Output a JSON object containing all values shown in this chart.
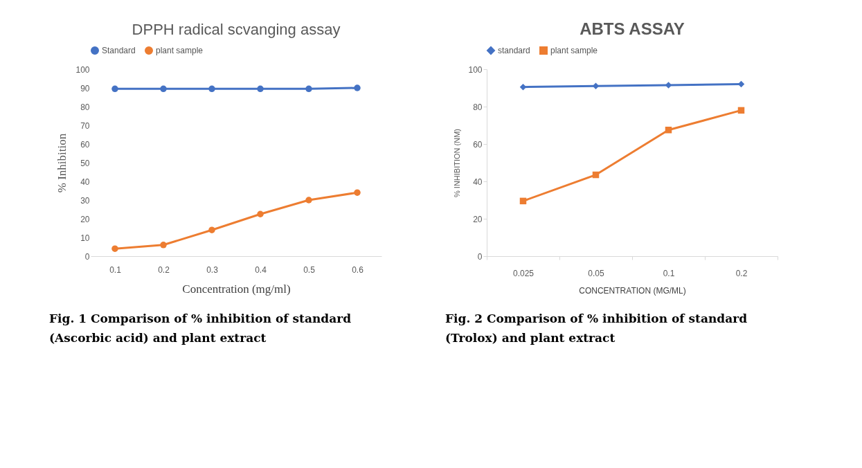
{
  "chart_data": [
    {
      "type": "line",
      "title": "DPPH radical scvanging assay",
      "xlabel": "Concentration  (mg/ml)",
      "ylabel": "% Inhibition",
      "categories": [
        "0.1",
        "0.2",
        "0.3",
        "0.4",
        "0.5",
        "0.6"
      ],
      "series": [
        {
          "name": "Standard",
          "color": "#4472c4",
          "values": [
            89.5,
            89.5,
            89.5,
            89.5,
            89.5,
            90
          ]
        },
        {
          "name": "plant sample",
          "color": "#ed7d31",
          "values": [
            4,
            6,
            14,
            22.5,
            30,
            34
          ]
        }
      ],
      "ylim": [
        0,
        100
      ],
      "yticks": [
        0,
        10,
        20,
        30,
        40,
        50,
        60,
        70,
        80,
        90,
        100
      ],
      "legend": "top",
      "marker": "circle",
      "grid": false,
      "annotations": [
        "Fig. 1 Comparison of % inhibition of standard (Ascorbic acid) and plant extract"
      ]
    },
    {
      "type": "line",
      "title": "ABTS ASSAY",
      "xlabel": "CONCENTRATION (MG/ML)",
      "ylabel": "% INHIBITION (NM)",
      "categories": [
        "0.025",
        "0.05",
        "0.1",
        "0.2"
      ],
      "series": [
        {
          "name": "standard",
          "color": "#4472c4",
          "values": [
            90.5,
            91,
            91.5,
            92
          ],
          "marker": "diamond"
        },
        {
          "name": "plant sample",
          "color": "#ed7d31",
          "values": [
            29.5,
            43.5,
            67.5,
            78
          ],
          "marker": "square"
        }
      ],
      "ylim": [
        0,
        100
      ],
      "yticks": [
        0,
        20,
        40,
        60,
        80,
        100
      ],
      "legend": "top",
      "grid": false,
      "annotations": [
        "Fig. 2 Comparison of % inhibition of standard (Trolox) and plant extract"
      ]
    }
  ]
}
